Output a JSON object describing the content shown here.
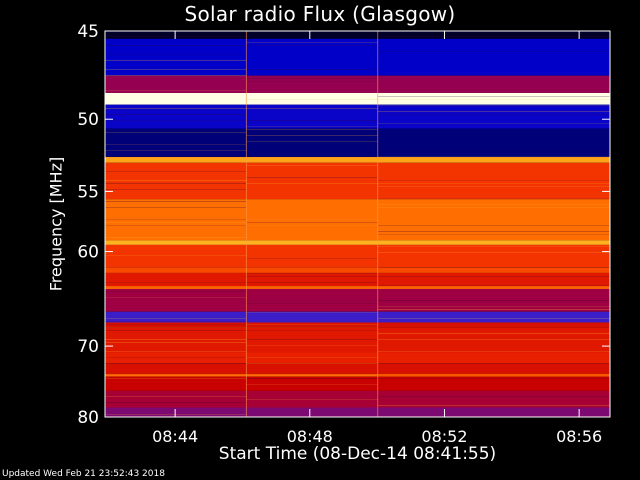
{
  "chart_data": {
    "type": "heatmap",
    "title": "Solar radio Flux (Glasgow)",
    "xlabel": "Start Time (08-Dec-14 08:41:55)",
    "ylabel": "Frequency [MHz]",
    "x_ticks": [
      "08:44",
      "08:48",
      "08:52",
      "08:56"
    ],
    "x_tick_minutes": [
      2.083,
      6.083,
      10.083,
      14.083
    ],
    "x_range_minutes": [
      0,
      15.0
    ],
    "y_ticks": [
      45,
      50,
      55,
      60,
      70,
      80
    ],
    "y_range_mhz": [
      45,
      80
    ],
    "y_scale": "reciprocal",
    "grid": false,
    "segment_boundaries_minutes": [
      4.2,
      8.1
    ],
    "bands": [
      {
        "f1": 45.0,
        "f2": 45.4,
        "intensity": 0.0
      },
      {
        "f1": 45.4,
        "f2": 47.4,
        "intensity": 0.12
      },
      {
        "f1": 47.4,
        "f2": 48.4,
        "intensity": 0.4
      },
      {
        "f1": 48.4,
        "f2": 49.1,
        "intensity": 1.0
      },
      {
        "f1": 49.1,
        "f2": 50.6,
        "intensity": 0.14
      },
      {
        "f1": 50.6,
        "f2": 52.5,
        "intensity": 0.06
      },
      {
        "f1": 52.5,
        "f2": 52.9,
        "intensity": 0.82
      },
      {
        "f1": 52.9,
        "f2": 55.6,
        "intensity": 0.64
      },
      {
        "f1": 55.6,
        "f2": 59.0,
        "intensity": 0.74
      },
      {
        "f1": 59.0,
        "f2": 59.4,
        "intensity": 0.84
      },
      {
        "f1": 59.4,
        "f2": 61.5,
        "intensity": 0.64
      },
      {
        "f1": 61.5,
        "f2": 62.0,
        "intensity": 0.68
      },
      {
        "f1": 62.0,
        "f2": 63.3,
        "intensity": 0.58
      },
      {
        "f1": 63.3,
        "f2": 63.6,
        "intensity": 0.72
      },
      {
        "f1": 63.6,
        "f2": 66.0,
        "intensity": 0.42
      },
      {
        "f1": 66.0,
        "f2": 67.2,
        "intensity": 0.26
      },
      {
        "f1": 67.2,
        "f2": 67.8,
        "intensity": 0.56
      },
      {
        "f1": 67.8,
        "f2": 70.8,
        "intensity": 0.58
      },
      {
        "f1": 70.8,
        "f2": 72.2,
        "intensity": 0.6
      },
      {
        "f1": 72.2,
        "f2": 73.6,
        "intensity": 0.56
      },
      {
        "f1": 73.6,
        "f2": 74.0,
        "intensity": 0.7
      },
      {
        "f1": 74.0,
        "f2": 76.0,
        "intensity": 0.52
      },
      {
        "f1": 76.0,
        "f2": 78.5,
        "intensity": 0.44
      },
      {
        "f1": 78.5,
        "f2": 80.0,
        "intensity": 0.36
      }
    ]
  },
  "footer": {
    "updated": "Updated Wed Feb 21 23:52:43 2018"
  }
}
